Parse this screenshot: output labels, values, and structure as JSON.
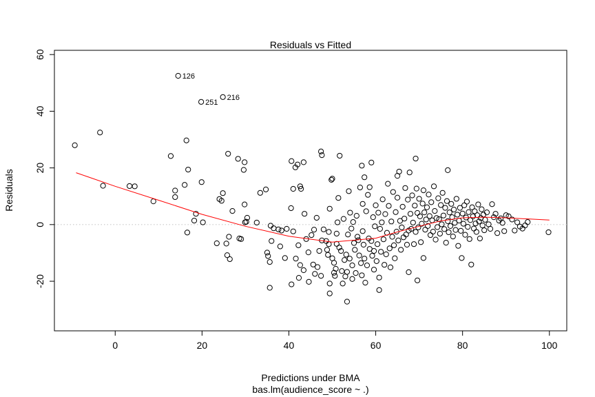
{
  "chart_data": {
    "type": "scatter",
    "title": "Residuals vs Fitted",
    "xlabel": "Predictions under BMA",
    "subtitle": "bas.lm(audience_score ~ .)",
    "ylabel": "Residuals",
    "xlim": [
      -14,
      104
    ],
    "ylim": [
      -37.5,
      61.5
    ],
    "xticks": [
      0,
      20,
      40,
      60,
      80,
      100
    ],
    "yticks": [
      -20,
      0,
      20,
      40,
      60
    ],
    "zero_line": {
      "y": 0,
      "color": "#c8c8c8",
      "style": "dotted"
    },
    "smooth_color": "#ff0000",
    "smooth": [
      [
        -9,
        18.3
      ],
      [
        0,
        13.5
      ],
      [
        10,
        8.6
      ],
      [
        20,
        3.6
      ],
      [
        30,
        -0.6
      ],
      [
        40,
        -4.1
      ],
      [
        50,
        -6.2
      ],
      [
        60,
        -4.8
      ],
      [
        65,
        -2.6
      ],
      [
        70,
        -0.6
      ],
      [
        75,
        1.3
      ],
      [
        80,
        2.4
      ],
      [
        85,
        2.6
      ],
      [
        90,
        2.4
      ],
      [
        100,
        1.6
      ]
    ],
    "labeled_points": [
      {
        "label": "126",
        "x": 14.5,
        "y": 52.5
      },
      {
        "label": "216",
        "x": 24.8,
        "y": 45.0
      },
      {
        "label": "251",
        "x": 19.8,
        "y": 43.3
      }
    ],
    "points": [
      [
        -9.3,
        28
      ],
      [
        -3.5,
        32.5
      ],
      [
        -2.8,
        13.7
      ],
      [
        3.3,
        13.6
      ],
      [
        4.5,
        13.5
      ],
      [
        8.8,
        8.2
      ],
      [
        12.8,
        24.2
      ],
      [
        13.8,
        9.7
      ],
      [
        13.8,
        12
      ],
      [
        16,
        14
      ],
      [
        16.4,
        29.7
      ],
      [
        16.6,
        -2.8
      ],
      [
        16.8,
        19.4
      ],
      [
        18.2,
        1.4
      ],
      [
        18.6,
        3.8
      ],
      [
        19.9,
        15
      ],
      [
        20.2,
        0.8
      ],
      [
        23.4,
        -6.6
      ],
      [
        24,
        9
      ],
      [
        24.8,
        11.1
      ],
      [
        24.5,
        8.4
      ],
      [
        25.6,
        -6.7
      ],
      [
        25.8,
        -10.8
      ],
      [
        26,
        25
      ],
      [
        26.2,
        -4.3
      ],
      [
        26.4,
        -12.2
      ],
      [
        27,
        4.8
      ],
      [
        28.3,
        23.2
      ],
      [
        28.6,
        -4.9
      ],
      [
        29,
        -5.1
      ],
      [
        29.6,
        19.3
      ],
      [
        29.8,
        22
      ],
      [
        29.8,
        7.1
      ],
      [
        29.9,
        0.8
      ],
      [
        30.4,
        2.4
      ],
      [
        30.2,
        1
      ],
      [
        32.6,
        0.7
      ],
      [
        33.4,
        11.2
      ],
      [
        34.7,
        12.4
      ],
      [
        35,
        -9.9
      ],
      [
        35.2,
        -11.1
      ],
      [
        35.6,
        -13.2
      ],
      [
        35.6,
        -22.3
      ],
      [
        35.8,
        -0.4
      ],
      [
        36,
        -5.8
      ],
      [
        36.5,
        -1.3
      ],
      [
        37.6,
        -1.7
      ],
      [
        38,
        -7.7
      ],
      [
        38.3,
        -2.1
      ],
      [
        39.1,
        -11.8
      ],
      [
        39.5,
        -1.5
      ],
      [
        40.5,
        5.8
      ],
      [
        40.6,
        -21.1
      ],
      [
        40.6,
        22.4
      ],
      [
        41,
        12.6
      ],
      [
        41,
        -2.4
      ],
      [
        41.5,
        20.2
      ],
      [
        41.6,
        -12
      ],
      [
        42.2,
        -7.3
      ],
      [
        42,
        21.2
      ],
      [
        42.6,
        13.5
      ],
      [
        42.6,
        -14.3
      ],
      [
        42.3,
        -18.8
      ],
      [
        42.8,
        12.6
      ],
      [
        43.4,
        22
      ],
      [
        43.4,
        -16.1
      ],
      [
        43.6,
        3.8
      ],
      [
        44,
        -5.1
      ],
      [
        44.5,
        -9.8
      ],
      [
        44.6,
        -20.2
      ],
      [
        45.2,
        -3.7
      ],
      [
        45.6,
        -14.1
      ],
      [
        45.8,
        -1.8
      ],
      [
        46,
        -17.4
      ],
      [
        46.4,
        2.4
      ],
      [
        46.6,
        -15
      ],
      [
        47,
        -9.3
      ],
      [
        47.4,
        25.8
      ],
      [
        47.4,
        -18.1
      ],
      [
        47.6,
        24.5
      ],
      [
        47.6,
        -5.6
      ],
      [
        48,
        -1.7
      ],
      [
        48.6,
        -5.8
      ],
      [
        48.8,
        -8.9
      ],
      [
        49,
        -10.7
      ],
      [
        49.2,
        -2.6
      ],
      [
        49.2,
        -6.9
      ],
      [
        49.4,
        -24.3
      ],
      [
        49.4,
        -20.8
      ],
      [
        49.4,
        5.6
      ],
      [
        49.8,
        15.8
      ],
      [
        50,
        16.2
      ],
      [
        50,
        -11.9
      ],
      [
        50.4,
        -13.5
      ],
      [
        50.4,
        -17
      ],
      [
        50.6,
        -18.1
      ],
      [
        50.8,
        -15.6
      ],
      [
        51,
        -3.2
      ],
      [
        51,
        -6.8
      ],
      [
        51.2,
        0.8
      ],
      [
        51.4,
        9.4
      ],
      [
        51.6,
        -8.1
      ],
      [
        51.7,
        24.3
      ],
      [
        52,
        -9.3
      ],
      [
        52.2,
        -16.4
      ],
      [
        52.4,
        -20.8
      ],
      [
        52.6,
        2
      ],
      [
        52.8,
        -12.5
      ],
      [
        53,
        -18.3
      ],
      [
        53.2,
        -10.6
      ],
      [
        53.4,
        -27.2
      ],
      [
        53.4,
        -16.7
      ],
      [
        53.6,
        -3.5
      ],
      [
        53.8,
        11.8
      ],
      [
        54,
        -12
      ],
      [
        54.1,
        4.2
      ],
      [
        54.4,
        -1.4
      ],
      [
        54.6,
        -19.2
      ],
      [
        54.6,
        -14.4
      ],
      [
        54.8,
        0.9
      ],
      [
        55,
        -6.5
      ],
      [
        55.2,
        -8.9
      ],
      [
        55.4,
        -17.1
      ],
      [
        55.6,
        3.1
      ],
      [
        55.8,
        -4.3
      ],
      [
        56,
        -5.5
      ],
      [
        56.2,
        -10.9
      ],
      [
        56.4,
        13.1
      ],
      [
        56.6,
        -13.6
      ],
      [
        56.8,
        20.8
      ],
      [
        56.8,
        -17.9
      ],
      [
        57,
        7.3
      ],
      [
        57,
        -2.3
      ],
      [
        57.2,
        -7.1
      ],
      [
        57.4,
        16.7
      ],
      [
        57.4,
        -12
      ],
      [
        57.6,
        -20.5
      ],
      [
        57.8,
        4.7
      ],
      [
        58,
        -14.4
      ],
      [
        58.2,
        10.5
      ],
      [
        58.4,
        -4.9
      ],
      [
        58.6,
        13.2
      ],
      [
        58.6,
        -8.6
      ],
      [
        59,
        21.9
      ],
      [
        59,
        -5.8
      ],
      [
        59.2,
        -11
      ],
      [
        59.4,
        2.6
      ],
      [
        59.6,
        -9.3
      ],
      [
        59.6,
        -15.9
      ],
      [
        59.8,
        -0.6
      ],
      [
        60,
        6.8
      ],
      [
        60.2,
        -12.9
      ],
      [
        60.4,
        -6.9
      ],
      [
        60.6,
        4.2
      ],
      [
        60.8,
        -18.7
      ],
      [
        60.8,
        -23.1
      ],
      [
        61,
        -1.5
      ],
      [
        61.2,
        -9.6
      ],
      [
        61.4,
        0.8
      ],
      [
        61.6,
        8.9
      ],
      [
        61.8,
        -5.2
      ],
      [
        62,
        -14.2
      ],
      [
        62.2,
        3.7
      ],
      [
        62.4,
        -10.5
      ],
      [
        62.6,
        -2.9
      ],
      [
        62.8,
        14.4
      ],
      [
        63,
        6.6
      ],
      [
        63.2,
        -8.4
      ],
      [
        63.4,
        -15.1
      ],
      [
        63.6,
        1.1
      ],
      [
        63.8,
        -4.3
      ],
      [
        64,
        11.5
      ],
      [
        64.2,
        -7.3
      ],
      [
        64.4,
        -11.9
      ],
      [
        64.6,
        4.4
      ],
      [
        64.8,
        -2.5
      ],
      [
        65,
        9.5
      ],
      [
        65,
        17.2
      ],
      [
        65.2,
        -5.6
      ],
      [
        65.4,
        18.7
      ],
      [
        65.6,
        1.3
      ],
      [
        65.8,
        -8.9
      ],
      [
        66,
        -1
      ],
      [
        66.2,
        6.3
      ],
      [
        66.4,
        -4.5
      ],
      [
        66.6,
        2.1
      ],
      [
        66.8,
        12.9
      ],
      [
        67,
        -3.5
      ],
      [
        67.2,
        -7.1
      ],
      [
        67.4,
        8.8
      ],
      [
        67.6,
        -2.1
      ],
      [
        67.6,
        -16.8
      ],
      [
        67.8,
        18.4
      ],
      [
        68,
        3.8
      ],
      [
        68.2,
        -1.5
      ],
      [
        68.4,
        10.3
      ],
      [
        68.6,
        0.7
      ],
      [
        68.8,
        -6.9
      ],
      [
        69,
        6.7
      ],
      [
        69.2,
        23.3
      ],
      [
        69.2,
        -2.6
      ],
      [
        69.4,
        12.7
      ],
      [
        69.6,
        4.1
      ],
      [
        69.6,
        -19.7
      ],
      [
        69.8,
        -1
      ],
      [
        70,
        9.1
      ],
      [
        70.2,
        2.9
      ],
      [
        70.4,
        -6.2
      ],
      [
        70.6,
        0.3
      ],
      [
        70.8,
        7.4
      ],
      [
        71,
        -11.8
      ],
      [
        71,
        12.1
      ],
      [
        71.2,
        4.3
      ],
      [
        71.4,
        -1.8
      ],
      [
        71.6,
        1.8
      ],
      [
        71.8,
        6.1
      ],
      [
        72,
        -0.5
      ],
      [
        72.2,
        10.6
      ],
      [
        72.4,
        3
      ],
      [
        72.6,
        -3.7
      ],
      [
        72.8,
        7.9
      ],
      [
        73,
        1.5
      ],
      [
        73.2,
        -2.5
      ],
      [
        73.4,
        13.5
      ],
      [
        73.6,
        4.8
      ],
      [
        73.8,
        -5.3
      ],
      [
        74,
        2.3
      ],
      [
        74.2,
        -0.9
      ],
      [
        74.4,
        9.3
      ],
      [
        74.6,
        1.9
      ],
      [
        74.8,
        -3.2
      ],
      [
        75,
        6.9
      ],
      [
        75.2,
        0.1
      ],
      [
        75.4,
        11.2
      ],
      [
        75.6,
        3.2
      ],
      [
        75.8,
        -1.6
      ],
      [
        76,
        5.9
      ],
      [
        76.2,
        -6.4
      ],
      [
        76.4,
        8.3
      ],
      [
        76.6,
        19.2
      ],
      [
        76.6,
        1.2
      ],
      [
        76.8,
        -2.7
      ],
      [
        77,
        4.3
      ],
      [
        77.2,
        -0.5
      ],
      [
        77.4,
        7.3
      ],
      [
        77.6,
        2.6
      ],
      [
        77.8,
        -4.2
      ],
      [
        78,
        5.3
      ],
      [
        78.2,
        0.6
      ],
      [
        78.4,
        -1.9
      ],
      [
        78.6,
        9.1
      ],
      [
        78.8,
        3.5
      ],
      [
        79,
        -7.5
      ],
      [
        79.2,
        1.4
      ],
      [
        79.4,
        5.9
      ],
      [
        79.6,
        -2.2
      ],
      [
        79.8,
        -11.8
      ],
      [
        80,
        3.9
      ],
      [
        80.2,
        0.3
      ],
      [
        80.4,
        6.8
      ],
      [
        80.6,
        -3.6
      ],
      [
        80.8,
        2.5
      ],
      [
        81,
        8.1
      ],
      [
        81.2,
        -0.8
      ],
      [
        81.4,
        4.4
      ],
      [
        81.6,
        -5.1
      ],
      [
        81.8,
        1.6
      ],
      [
        82,
        -14.1
      ],
      [
        82.2,
        6.1
      ],
      [
        82.4,
        2.9
      ],
      [
        82.6,
        -1.4
      ],
      [
        82.8,
        4.7
      ],
      [
        83,
        0.4
      ],
      [
        83.2,
        -2.6
      ],
      [
        83.4,
        3.3
      ],
      [
        83.6,
        7.1
      ],
      [
        83.8,
        1.1
      ],
      [
        84,
        -4.9
      ],
      [
        84.2,
        2.3
      ],
      [
        84.4,
        5.4
      ],
      [
        84.6,
        -0.3
      ],
      [
        84.8,
        3.5
      ],
      [
        85,
        -2
      ],
      [
        85.2,
        1.7
      ],
      [
        85.6,
        4.3
      ],
      [
        86,
        0.1
      ],
      [
        86.4,
        -1.5
      ],
      [
        86.8,
        7.2
      ],
      [
        87.2,
        2.6
      ],
      [
        87.6,
        3.8
      ],
      [
        88,
        -3
      ],
      [
        88.4,
        1.4
      ],
      [
        88.8,
        2.2
      ],
      [
        89.2,
        0.6
      ],
      [
        89.6,
        -2.3
      ],
      [
        90,
        3.3
      ],
      [
        90.6,
        2.9
      ],
      [
        91.4,
        1.8
      ],
      [
        92,
        -2.1
      ],
      [
        92.6,
        0.8
      ],
      [
        93.2,
        -0.7
      ],
      [
        93.8,
        -1.4
      ],
      [
        94.4,
        -0.3
      ],
      [
        95,
        0.9
      ],
      [
        99.8,
        -2.7
      ]
    ]
  }
}
